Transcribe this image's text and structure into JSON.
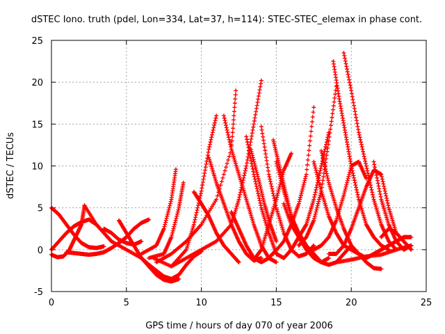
{
  "chart_data": {
    "type": "scatter",
    "title": "dSTEC Iono. truth (pdel, Lon=334, Lat=37, h=114): STEC-STEC_elemax in phase cont.",
    "xlabel": "GPS time / hours of day 070 of year 2006",
    "ylabel": "dSTEC  / TECUs",
    "xlim": [
      0,
      25
    ],
    "ylim": [
      -5,
      25
    ],
    "x_ticks": [
      0,
      5,
      10,
      15,
      20,
      25
    ],
    "y_ticks": [
      -5,
      0,
      5,
      10,
      15,
      20,
      25
    ],
    "grid": true,
    "marker": "plus",
    "color": "#ff0000",
    "series": [
      {
        "x": [
          0.0,
          0.5,
          1.0,
          1.5,
          2.0,
          2.5,
          3.0,
          3.5
        ],
        "values": [
          5.0,
          4.2,
          3.0,
          1.8,
          0.8,
          0.3,
          0.2,
          0.4
        ]
      },
      {
        "x": [
          0.0,
          0.4,
          0.8,
          1.2,
          1.6,
          2.0,
          2.2
        ],
        "values": [
          -0.6,
          -0.9,
          -0.8,
          0.0,
          1.5,
          3.0,
          5.2
        ]
      },
      {
        "x": [
          0.0,
          0.5,
          1.0,
          1.5,
          2.0,
          2.5,
          3.0,
          3.5,
          4.0
        ],
        "values": [
          0.0,
          1.0,
          2.0,
          2.8,
          3.3,
          3.6,
          3.0,
          2.0,
          1.0
        ]
      },
      {
        "x": [
          2.2,
          3.0,
          4.0,
          5.0,
          6.0,
          6.5,
          7.0,
          7.5,
          8.0,
          8.5,
          9.0,
          9.5,
          10.0
        ],
        "values": [
          5.3,
          3.0,
          1.0,
          0.0,
          -1.0,
          -1.8,
          -2.5,
          -3.2,
          -3.5,
          -3.0,
          -1.8,
          -0.8,
          -0.2
        ]
      },
      {
        "x": [
          1.0,
          1.5,
          2.0,
          2.5,
          3.0,
          3.5,
          4.0,
          4.5,
          5.0,
          5.5,
          6.0,
          6.5
        ],
        "values": [
          -0.3,
          -0.4,
          -0.5,
          -0.6,
          -0.5,
          -0.3,
          0.2,
          0.8,
          1.5,
          2.5,
          3.2,
          3.6
        ]
      },
      {
        "x": [
          3.5,
          4.0,
          4.5,
          5.0,
          5.5,
          6.0
        ],
        "values": [
          2.5,
          2.0,
          1.2,
          0.8,
          0.6,
          1.0
        ]
      },
      {
        "x": [
          4.5,
          5.0,
          5.5,
          6.0,
          6.5,
          7.0,
          7.5,
          8.0,
          8.5
        ],
        "values": [
          3.5,
          2.0,
          0.5,
          -1.0,
          -2.0,
          -3.0,
          -3.6,
          -3.8,
          -3.5
        ]
      },
      {
        "x": [
          6.0,
          7.0,
          7.5,
          8.0,
          8.3
        ],
        "values": [
          -0.5,
          0.5,
          2.5,
          6.0,
          9.6
        ]
      },
      {
        "x": [
          6.5,
          7.5,
          8.0,
          8.5,
          8.8
        ],
        "values": [
          -1.0,
          -0.5,
          1.5,
          5.0,
          8.0
        ]
      },
      {
        "x": [
          6.8,
          8.0,
          9.0,
          9.5,
          10.0,
          10.5,
          11.0
        ],
        "values": [
          -1.0,
          -2.0,
          0.0,
          3.0,
          7.0,
          12.0,
          16.0
        ]
      },
      {
        "x": [
          7.0,
          8.0,
          9.0,
          10.0,
          11.0,
          12.0,
          12.3
        ],
        "values": [
          -1.5,
          -0.5,
          1.0,
          3.0,
          6.0,
          12.0,
          19.0
        ]
      },
      {
        "x": [
          8.0,
          9.0,
          10.0,
          11.0,
          12.0,
          12.5,
          13.0,
          13.5,
          14.0
        ],
        "values": [
          -2.0,
          -1.0,
          0.0,
          1.0,
          3.0,
          6.0,
          10.0,
          15.0,
          20.2
        ]
      },
      {
        "x": [
          9.5,
          10.0,
          10.5,
          11.0,
          11.5,
          12.0,
          12.5
        ],
        "values": [
          6.9,
          5.5,
          4.0,
          2.0,
          0.5,
          -0.5,
          -1.5
        ]
      },
      {
        "x": [
          10.5,
          11.0,
          11.5,
          12.0,
          12.5,
          13.0,
          13.5,
          14.0
        ],
        "values": [
          11.0,
          8.0,
          5.5,
          3.0,
          1.0,
          -0.5,
          -1.3,
          -1.0
        ]
      },
      {
        "x": [
          11.5,
          12.0,
          12.5,
          13.0,
          13.5,
          14.0,
          14.5,
          15.0
        ],
        "values": [
          16.0,
          12.0,
          9.0,
          6.0,
          3.0,
          0.5,
          -1.0,
          -1.5
        ]
      },
      {
        "x": [
          12.0,
          12.5,
          13.0,
          13.5,
          14.0,
          14.5,
          15.0
        ],
        "values": [
          4.5,
          2.5,
          0.5,
          -1.0,
          -1.5,
          -1.0,
          0.0
        ]
      },
      {
        "x": [
          13.0,
          13.5,
          14.0,
          14.5,
          15.0,
          15.5,
          16.0
        ],
        "values": [
          13.5,
          9.0,
          5.0,
          2.0,
          -0.5,
          -1.0,
          0.0
        ]
      },
      {
        "x": [
          13.3,
          13.8,
          14.2,
          14.6,
          15.0
        ],
        "values": [
          12.0,
          8.5,
          5.5,
          3.0,
          1.0
        ]
      },
      {
        "x": [
          14.0,
          14.5,
          15.0,
          15.5,
          16.0,
          16.5,
          17.0,
          17.5
        ],
        "values": [
          14.7,
          9.0,
          5.0,
          2.0,
          0.0,
          -0.8,
          -0.5,
          0.5
        ]
      },
      {
        "x": [
          14.8,
          15.2,
          15.6,
          16.0,
          16.5,
          17.0
        ],
        "values": [
          13.1,
          10.0,
          7.0,
          4.0,
          2.0,
          0.5
        ]
      },
      {
        "x": [
          15.0,
          15.5,
          16.0,
          16.5,
          17.0,
          17.5,
          18.0,
          18.5
        ],
        "values": [
          10.5,
          7.0,
          4.0,
          1.5,
          0.0,
          -1.0,
          -1.5,
          -1.0
        ]
      },
      {
        "x": [
          13.5,
          14.0,
          14.5,
          15.0,
          15.5,
          16.0
        ],
        "values": [
          -1.2,
          0.0,
          3.0,
          6.0,
          9.5,
          11.5
        ]
      },
      {
        "x": [
          15.5,
          16.0,
          16.5,
          17.0,
          17.5,
          18.0,
          18.5,
          19.0,
          19.5,
          20.0
        ],
        "values": [
          5.5,
          3.0,
          1.5,
          0.5,
          -0.5,
          -1.5,
          -1.8,
          -1.5,
          -0.5,
          0.5
        ]
      },
      {
        "x": [
          14.8,
          15.5,
          16.0,
          16.5,
          17.0,
          17.5
        ],
        "values": [
          -0.5,
          1.0,
          3.0,
          5.5,
          9.0,
          17.0
        ]
      },
      {
        "x": [
          16.0,
          16.5,
          17.0,
          17.5,
          18.0,
          18.5
        ],
        "values": [
          0.0,
          1.5,
          3.0,
          6.0,
          10.0,
          14.0
        ]
      },
      {
        "x": [
          16.5,
          17.0,
          17.5,
          18.0,
          18.5,
          19.0
        ],
        "values": [
          0.5,
          1.5,
          3.5,
          7.0,
          13.0,
          19.5
        ]
      },
      {
        "x": [
          17.5,
          18.0,
          18.5,
          19.0,
          19.5,
          20.0,
          20.5,
          21.0
        ],
        "values": [
          10.5,
          7.0,
          4.0,
          2.0,
          0.5,
          0.0,
          -0.5,
          -1.0
        ]
      },
      {
        "x": [
          18.0,
          18.5,
          19.0,
          19.5,
          20.0,
          20.5,
          21.0,
          21.5,
          22.0
        ],
        "values": [
          11.8,
          8.0,
          5.0,
          2.5,
          0.5,
          -0.5,
          -1.5,
          -2.2,
          -2.3
        ]
      },
      {
        "x": [
          18.8,
          19.2,
          19.6,
          20.0,
          20.5,
          21.0,
          21.5,
          22.0,
          22.5
        ],
        "values": [
          22.5,
          18.0,
          14.0,
          10.0,
          6.0,
          3.0,
          1.5,
          0.5,
          0.0
        ]
      },
      {
        "x": [
          19.5,
          20.0,
          20.5,
          21.0,
          21.5,
          22.0,
          22.5,
          23.0
        ],
        "values": [
          23.5,
          19.0,
          14.0,
          10.0,
          6.0,
          3.0,
          1.0,
          0.0
        ]
      },
      {
        "x": [
          17.5,
          18.0,
          18.5,
          19.0,
          19.5,
          20.0,
          20.5,
          21.0
        ],
        "values": [
          0.0,
          0.5,
          1.5,
          3.5,
          6.5,
          10.0,
          10.5,
          8.5
        ]
      },
      {
        "x": [
          18.5,
          19.0,
          19.5,
          20.0,
          20.5,
          21.0,
          21.5,
          22.0,
          22.5,
          23.0
        ],
        "values": [
          -0.5,
          -0.5,
          0.5,
          2.5,
          5.0,
          7.5,
          9.5,
          9.0,
          5.0,
          2.0
        ]
      },
      {
        "x": [
          21.5,
          22.0,
          22.5,
          23.0,
          23.5,
          24.0
        ],
        "values": [
          10.5,
          6.0,
          3.0,
          1.0,
          0.0,
          0.5
        ]
      },
      {
        "x": [
          21.0,
          21.5,
          22.0,
          22.5,
          23.0,
          23.5,
          24.0
        ],
        "values": [
          -1.0,
          -0.5,
          0.0,
          0.5,
          1.0,
          1.5,
          1.5
        ]
      },
      {
        "x": [
          22.0,
          22.5,
          23.0,
          23.5,
          24.0
        ],
        "values": [
          1.5,
          2.5,
          2.0,
          1.0,
          0.0
        ]
      },
      {
        "x": [
          19.0,
          20.0,
          21.0,
          22.0,
          23.0,
          24.0
        ],
        "values": [
          -1.5,
          -1.2,
          -0.8,
          -0.6,
          0.0,
          0.5
        ]
      }
    ]
  }
}
